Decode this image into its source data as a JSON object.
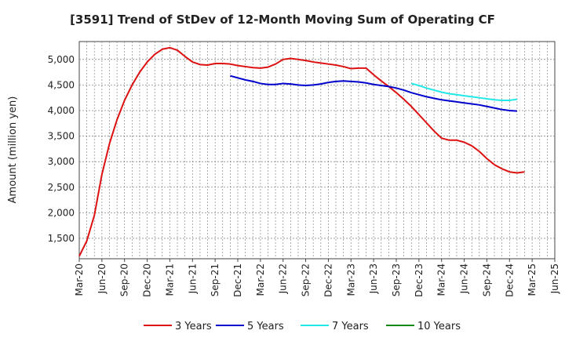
{
  "chart_data": {
    "type": "line",
    "title": "[3591]  Trend of StDev of 12-Month Moving Sum of Operating CF",
    "ylabel": "Amount (million yen)",
    "xlabel": "",
    "ylim": [
      1100,
      5350
    ],
    "yticks": [
      1500,
      2000,
      2500,
      3000,
      3500,
      4000,
      4500,
      5000
    ],
    "ytick_labels": [
      "1,500",
      "2,000",
      "2,500",
      "3,000",
      "3,500",
      "4,000",
      "4,500",
      "5,000"
    ],
    "x_start": "2020-03",
    "x_end": "2025-06",
    "xtick_labels": [
      "Mar-20",
      "Jun-20",
      "Sep-20",
      "Dec-20",
      "Mar-21",
      "Jun-21",
      "Sep-21",
      "Dec-21",
      "Mar-22",
      "Jun-22",
      "Sep-22",
      "Dec-22",
      "Mar-23",
      "Jun-23",
      "Sep-23",
      "Dec-23",
      "Mar-24",
      "Jun-24",
      "Sep-24",
      "Dec-24",
      "Mar-25",
      "Jun-25"
    ],
    "grid": true,
    "legend_position": "bottom",
    "series": [
      {
        "name": "3 Years",
        "color": "#dd1111",
        "start": "2020-03",
        "values": [
          1150,
          1450,
          1950,
          2750,
          3350,
          3820,
          4200,
          4500,
          4750,
          4950,
          5100,
          5200,
          5230,
          5180,
          5060,
          4950,
          4900,
          4890,
          4920,
          4920,
          4910,
          4880,
          4860,
          4840,
          4830,
          4850,
          4910,
          5000,
          5020,
          5000,
          4980,
          4950,
          4930,
          4910,
          4890,
          4860,
          4820,
          4830,
          4830,
          4700,
          4580,
          4470,
          4350,
          4220,
          4080,
          3920,
          3760,
          3600,
          3460,
          3420,
          3420,
          3380,
          3310,
          3200,
          3060,
          2940,
          2860,
          2800,
          2780,
          2800
        ]
      },
      {
        "name": "5 Years",
        "color": "#0000cc",
        "start": "2021-11",
        "values": [
          4680,
          4640,
          4600,
          4570,
          4530,
          4510,
          4510,
          4530,
          4520,
          4500,
          4490,
          4500,
          4520,
          4550,
          4570,
          4580,
          4570,
          4560,
          4540,
          4510,
          4490,
          4470,
          4440,
          4400,
          4350,
          4310,
          4270,
          4240,
          4210,
          4190,
          4170,
          4150,
          4130,
          4110,
          4080,
          4050,
          4020,
          4000,
          3990
        ]
      },
      {
        "name": "7 Years",
        "color": "#22e8e8",
        "start": "2023-11",
        "values": [
          4530,
          4490,
          4440,
          4400,
          4360,
          4330,
          4310,
          4290,
          4270,
          4250,
          4230,
          4210,
          4200,
          4200,
          4220
        ]
      },
      {
        "name": "10 Years",
        "color": "#118811",
        "start": "2023-11",
        "values": []
      }
    ]
  }
}
